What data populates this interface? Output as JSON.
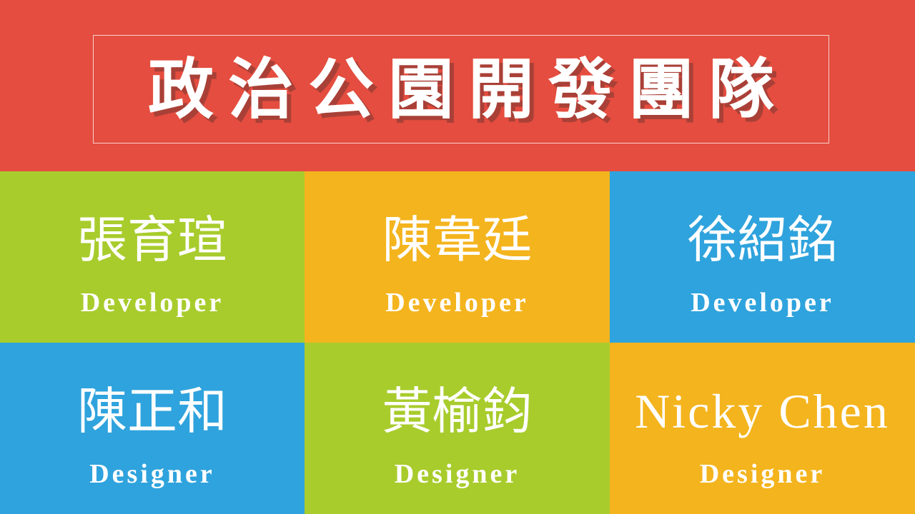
{
  "header": {
    "title": "政治公園開發團隊",
    "background_color": "#E44D3F"
  },
  "team": [
    {
      "name": "張育瑄",
      "role": "Developer",
      "color": "#A8CC2C"
    },
    {
      "name": "陳韋廷",
      "role": "Developer",
      "color": "#F4B41E"
    },
    {
      "name": "徐紹銘",
      "role": "Developer",
      "color": "#2FA3DD"
    },
    {
      "name": "陳正和",
      "role": "Designer",
      "color": "#2FA3DD"
    },
    {
      "name": "黃榆鈞",
      "role": "Designer",
      "color": "#A8CC2C"
    },
    {
      "name": "Nicky Chen",
      "role": "Designer",
      "color": "#F4B41E"
    }
  ]
}
